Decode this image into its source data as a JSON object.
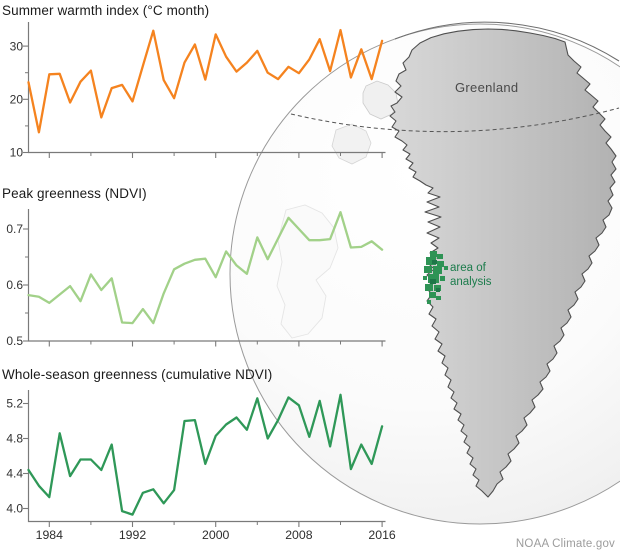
{
  "page": {
    "footer": "NOAA Climate.gov"
  },
  "map": {
    "region_label": "Greenland",
    "analysis_label_line1": "area of",
    "analysis_label_line2": "analysis",
    "land_color_light": "#d6d6d6",
    "land_color_dark": "#b2b2b2",
    "land_outline_color": "#4f4f4f",
    "globe_outline_color": "#9a9a9a",
    "analysis_patch_color": "#2E9355",
    "analysis_patch_dark": "#1e7648",
    "analysis_label_color": "#1c7c4c",
    "arctic_circle_style": "dashed"
  },
  "chart_data": [
    {
      "type": "line",
      "title": "Summer warmth index (°C month)",
      "color": "#F5831F",
      "xlabel": "",
      "ylabel": "",
      "ylim": [
        10,
        35
      ],
      "grid": false,
      "legend": "none",
      "yticks": [
        30,
        20,
        10
      ],
      "ytick_labels": [
        "30",
        "20",
        "10"
      ],
      "yticks_minor": [
        25,
        15
      ],
      "xticks": [
        1984,
        1992,
        2000,
        2008,
        2016
      ],
      "xticks_minor": [
        1988,
        1996,
        2004,
        2012
      ],
      "xtick_labels": null,
      "x": [
        1982,
        1983,
        1984,
        1985,
        1986,
        1987,
        1988,
        1989,
        1990,
        1991,
        1992,
        1993,
        1994,
        1995,
        1996,
        1997,
        1998,
        1999,
        2000,
        2001,
        2002,
        2003,
        2004,
        2005,
        2006,
        2007,
        2008,
        2009,
        2010,
        2011,
        2012,
        2013,
        2014,
        2015,
        2016
      ],
      "values": [
        23.2,
        13.8,
        24.7,
        24.8,
        19.4,
        23.3,
        25.4,
        16.6,
        22.1,
        22.7,
        19.6,
        26.3,
        32.9,
        23.6,
        20.2,
        26.9,
        30.3,
        23.7,
        32.2,
        28.0,
        25.2,
        26.9,
        29.1,
        25.0,
        23.8,
        26.1,
        24.9,
        27.5,
        31.3,
        25.3,
        33.0,
        24.1,
        29.4,
        23.8,
        31.0
      ]
    },
    {
      "type": "line",
      "title": "Peak greenness (NDVI)",
      "color": "#A2D189",
      "xlabel": "",
      "ylabel": "",
      "ylim": [
        0.5,
        0.74
      ],
      "grid": false,
      "legend": "none",
      "yticks": [
        0.7,
        0.6,
        0.5
      ],
      "ytick_labels": [
        "0.7",
        "0.6",
        "0.5"
      ],
      "yticks_minor": [
        0.65,
        0.55
      ],
      "xticks": [
        1984,
        1992,
        2000,
        2008,
        2016
      ],
      "xticks_minor": [
        1988,
        1996,
        2004,
        2012
      ],
      "xtick_labels": null,
      "x": [
        1982,
        1983,
        1984,
        1985,
        1986,
        1987,
        1988,
        1989,
        1990,
        1991,
        1992,
        1993,
        1994,
        1995,
        1996,
        1997,
        1998,
        1999,
        2000,
        2001,
        2002,
        2003,
        2004,
        2005,
        2006,
        2007,
        2008,
        2009,
        2010,
        2011,
        2012,
        2013,
        2014,
        2015,
        2016
      ],
      "values": [
        0.582,
        0.579,
        0.568,
        0.583,
        0.598,
        0.571,
        0.619,
        0.591,
        0.612,
        0.533,
        0.532,
        0.557,
        0.532,
        0.585,
        0.628,
        0.638,
        0.645,
        0.647,
        0.614,
        0.66,
        0.635,
        0.62,
        0.685,
        0.646,
        0.683,
        0.72,
        0.7,
        0.68,
        0.68,
        0.682,
        0.73,
        0.667,
        0.668,
        0.678,
        0.663
      ]
    },
    {
      "type": "line",
      "title": "Whole-season greenness (cumulative NDVI)",
      "color": "#2F9858",
      "xlabel": "",
      "ylabel": "",
      "ylim": [
        3.85,
        5.35
      ],
      "grid": false,
      "legend": "none",
      "yticks": [
        5.2,
        4.8,
        4.4,
        4.0
      ],
      "ytick_labels": [
        "5.2",
        "4.8",
        "4.4",
        "4.0"
      ],
      "yticks_minor": [],
      "xticks": [
        1984,
        1992,
        2000,
        2008,
        2016
      ],
      "xticks_minor": [
        1988,
        1996,
        2004,
        2012
      ],
      "xtick_labels": [
        "1984",
        "1992",
        "2000",
        "2008",
        "2016"
      ],
      "x": [
        1982,
        1983,
        1984,
        1985,
        1986,
        1987,
        1988,
        1989,
        1990,
        1991,
        1992,
        1993,
        1994,
        1995,
        1996,
        1997,
        1998,
        1999,
        2000,
        2001,
        2002,
        2003,
        2004,
        2005,
        2006,
        2007,
        2008,
        2009,
        2010,
        2011,
        2012,
        2013,
        2014,
        2015,
        2016
      ],
      "values": [
        4.44,
        4.26,
        4.13,
        4.86,
        4.37,
        4.56,
        4.56,
        4.44,
        4.73,
        3.97,
        3.93,
        4.18,
        4.22,
        4.06,
        4.21,
        5.0,
        5.01,
        4.51,
        4.83,
        4.96,
        5.04,
        4.9,
        5.26,
        4.8,
        5.01,
        5.27,
        5.18,
        4.82,
        5.23,
        4.71,
        5.3,
        4.45,
        4.73,
        4.51,
        4.94
      ]
    }
  ]
}
